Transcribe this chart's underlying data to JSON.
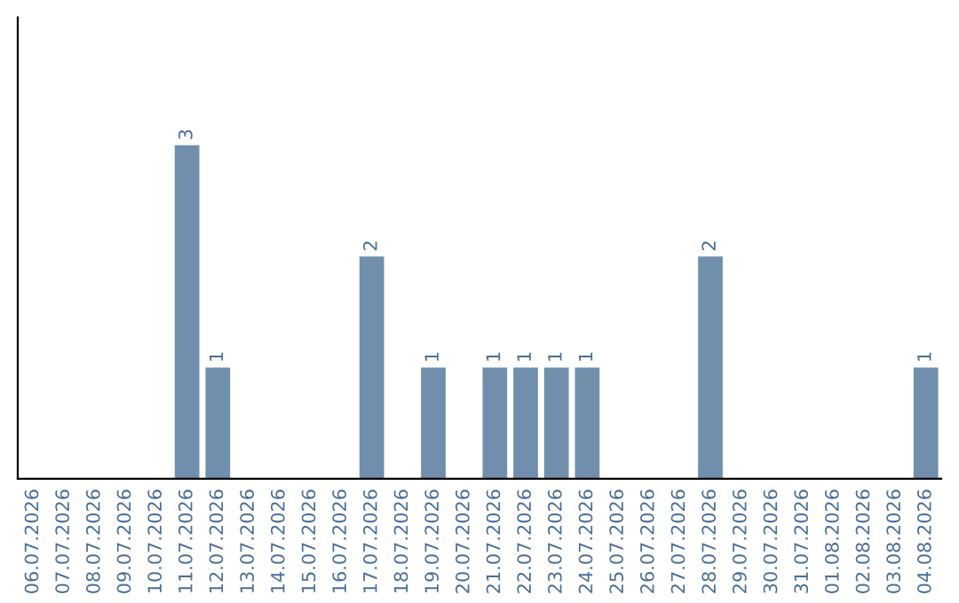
{
  "chart_data": {
    "type": "bar",
    "categories": [
      "06.07.2026",
      "07.07.2026",
      "08.07.2026",
      "09.07.2026",
      "10.07.2026",
      "11.07.2026",
      "12.07.2026",
      "13.07.2026",
      "14.07.2026",
      "15.07.2026",
      "16.07.2026",
      "17.07.2026",
      "18.07.2026",
      "19.07.2026",
      "20.07.2026",
      "21.07.2026",
      "22.07.2026",
      "23.07.2026",
      "24.07.2026",
      "25.07.2026",
      "26.07.2026",
      "27.07.2026",
      "28.07.2026",
      "29.07.2026",
      "30.07.2026",
      "31.07.2026",
      "01.08.2026",
      "02.08.2026",
      "03.08.2026",
      "04.08.2026"
    ],
    "values": [
      0,
      0,
      0,
      0,
      0,
      3,
      1,
      0,
      0,
      0,
      0,
      2,
      0,
      1,
      0,
      1,
      1,
      1,
      1,
      0,
      0,
      0,
      2,
      0,
      0,
      0,
      0,
      0,
      0,
      1
    ],
    "value_labels": [
      null,
      null,
      null,
      null,
      null,
      "3",
      "1",
      null,
      null,
      null,
      null,
      "2",
      null,
      "1",
      null,
      "1",
      "1",
      "1",
      "1",
      null,
      null,
      null,
      "2",
      null,
      null,
      null,
      null,
      null,
      null,
      "1"
    ],
    "color": "#6f8fad",
    "ylim": [
      0,
      4.15
    ],
    "tick_labels": "x",
    "grid": false,
    "legend": false
  }
}
